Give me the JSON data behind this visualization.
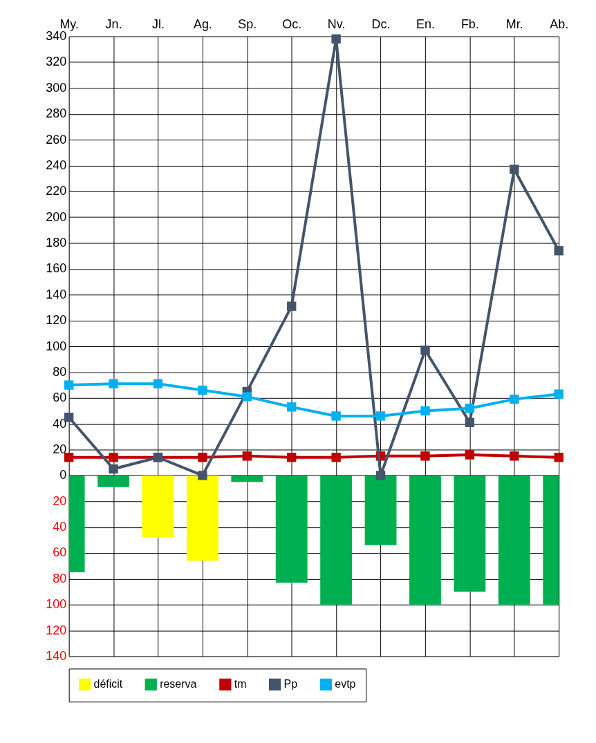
{
  "chart_data": {
    "type": "bar",
    "categories": [
      "My.",
      "Jn.",
      "Jl.",
      "Ag.",
      "Sp.",
      "Oc.",
      "Nv.",
      "Dc.",
      "En.",
      "Fb.",
      "Mr.",
      "Ab."
    ],
    "series": [
      {
        "name": "déficit",
        "type": "bar",
        "color": "#ffff00",
        "values": [
          null,
          null,
          -48,
          -66,
          null,
          null,
          null,
          null,
          null,
          null,
          null,
          null
        ]
      },
      {
        "name": "reserva",
        "type": "bar",
        "color": "#00b050",
        "values": [
          -75,
          -9,
          null,
          null,
          -5,
          -83,
          -100,
          -54,
          -100,
          -90,
          -100,
          -100
        ]
      },
      {
        "name": "tm",
        "type": "line",
        "color": "#c00000",
        "values": [
          14,
          14,
          14,
          14,
          15,
          14,
          14,
          15,
          15,
          16,
          15,
          14
        ]
      },
      {
        "name": "Pp",
        "type": "line",
        "color": "#44546a",
        "values": [
          45,
          5,
          14,
          0,
          65,
          131,
          338,
          0,
          97,
          41,
          237,
          174
        ]
      },
      {
        "name": "evtp",
        "type": "line",
        "color": "#00b0f0",
        "values": [
          70,
          71,
          71,
          66,
          61,
          53,
          46,
          46,
          50,
          52,
          59,
          63
        ]
      }
    ],
    "ylim": [
      -140,
      340
    ],
    "yticks": [
      {
        "value": -140,
        "label": "140"
      },
      {
        "value": -120,
        "label": "120"
      },
      {
        "value": -100,
        "label": "100"
      },
      {
        "value": -80,
        "label": "80"
      },
      {
        "value": -60,
        "label": "60"
      },
      {
        "value": -40,
        "label": "40"
      },
      {
        "value": -20,
        "label": "20"
      },
      0,
      20,
      40,
      60,
      80,
      100,
      120,
      140,
      160,
      180,
      200,
      220,
      240,
      260,
      280,
      300,
      320,
      340
    ],
    "grid": true,
    "legend": "bottom",
    "marker": "square",
    "line_style": "solid"
  }
}
